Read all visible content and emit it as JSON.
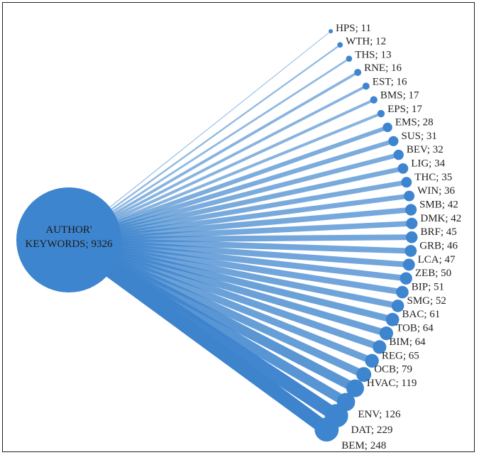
{
  "hub": {
    "label": "AUTHOR'",
    "label_line2": "KEYWORDS; 9326",
    "value": 9326
  },
  "colors": {
    "node": "#3e85cf",
    "edge": "#3d84cd",
    "text": "#222222",
    "border": "#222222"
  },
  "nodes": [
    {
      "code": "HPS",
      "value": 11
    },
    {
      "code": "WTH",
      "value": 12
    },
    {
      "code": "THS",
      "value": 13
    },
    {
      "code": "RNE",
      "value": 16
    },
    {
      "code": "EST",
      "value": 16
    },
    {
      "code": "BMS",
      "value": 17
    },
    {
      "code": "EPS",
      "value": 17
    },
    {
      "code": "EMS",
      "value": 28
    },
    {
      "code": "SUS",
      "value": 31
    },
    {
      "code": "BEV",
      "value": 32
    },
    {
      "code": "LIG",
      "value": 34
    },
    {
      "code": "THC",
      "value": 35
    },
    {
      "code": "WIN",
      "value": 36
    },
    {
      "code": "SMB",
      "value": 42
    },
    {
      "code": "DMK",
      "value": 42
    },
    {
      "code": "BRF",
      "value": 45
    },
    {
      "code": "GRB",
      "value": 46
    },
    {
      "code": "LCA",
      "value": 47
    },
    {
      "code": "ZEB",
      "value": 50
    },
    {
      "code": "BIP",
      "value": 51
    },
    {
      "code": "SMG",
      "value": 52
    },
    {
      "code": "BAC",
      "value": 61
    },
    {
      "code": "TOB",
      "value": 64
    },
    {
      "code": "BIM",
      "value": 64
    },
    {
      "code": "REG",
      "value": 65
    },
    {
      "code": "OCB",
      "value": 79
    },
    {
      "code": "HVAC",
      "value": 119
    },
    {
      "code": "ENV",
      "value": 126
    },
    {
      "code": "DAT",
      "value": 229
    },
    {
      "code": "BEM",
      "value": 248
    }
  ]
}
